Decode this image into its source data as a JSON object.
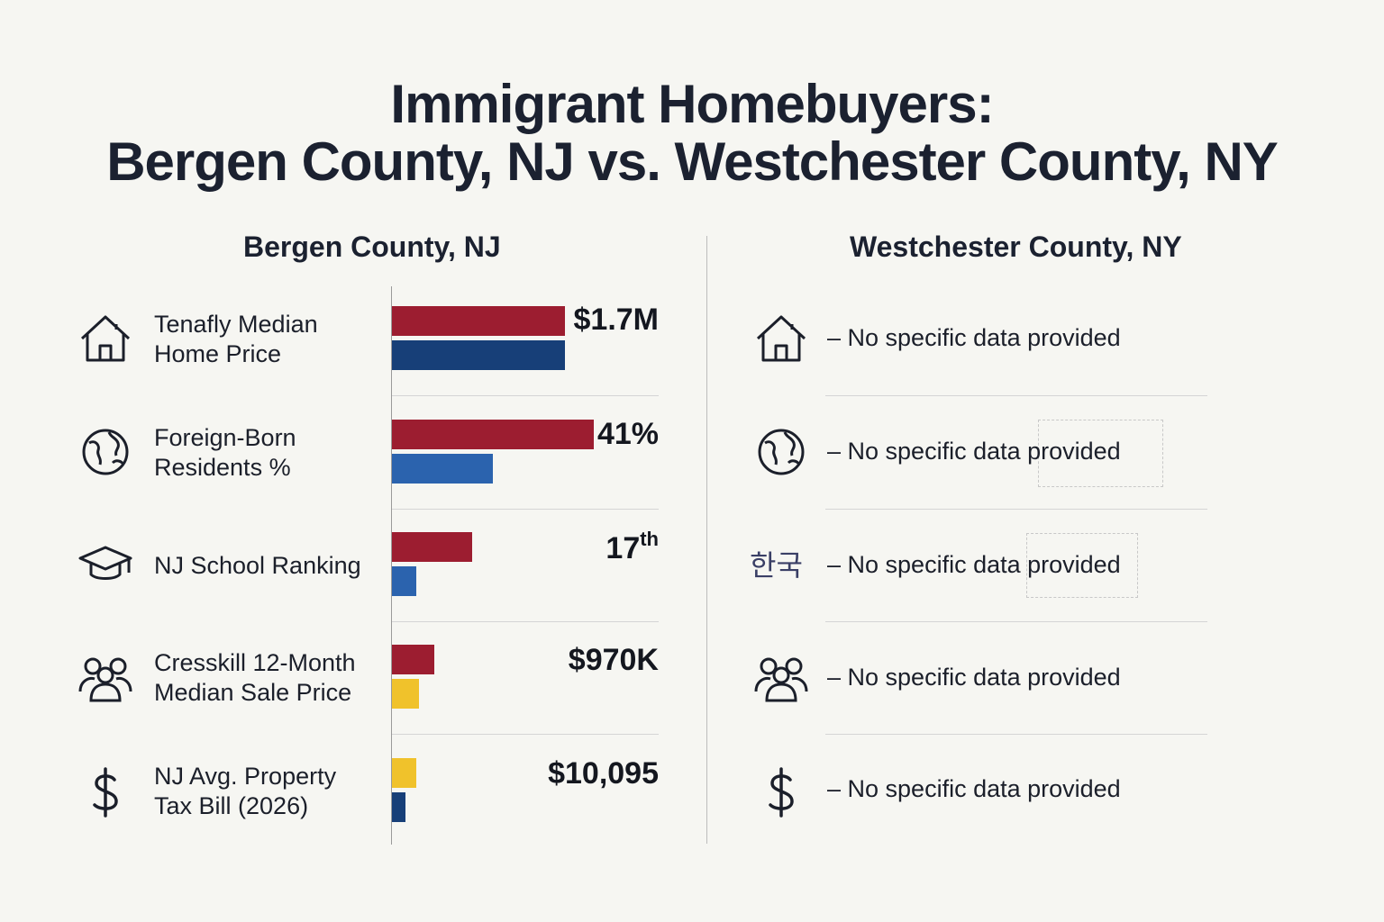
{
  "title": {
    "line1": "Immigrant Homebuyers:",
    "line2": "Bergen County, NJ vs. Westchester County, NY"
  },
  "columns": {
    "left": "Bergen County, NJ",
    "right": "Westchester County, NY"
  },
  "rows": [
    {
      "icon": "house-icon",
      "label_line1": "Tenafly Median",
      "label_line2": "Home Price",
      "value": "$1.7M",
      "value_suffix": "",
      "right_text": "– No specific data provided"
    },
    {
      "icon": "globe-icon",
      "label_line1": "Foreign-Born",
      "label_line2": "Residents %",
      "value": "41%",
      "value_suffix": "",
      "right_text": "– No specific data provided"
    },
    {
      "icon": "graduation-cap-icon",
      "label_line1": "NJ School Ranking",
      "label_line2": "",
      "value": "17",
      "value_suffix": "th",
      "right_text": "– No specific data provided",
      "right_icon_text": "한국"
    },
    {
      "icon": "people-group-icon",
      "label_line1": "Cresskill 12-Month",
      "label_line2": "Median Sale Price",
      "value": "$970K",
      "value_suffix": "",
      "right_text": "– No specific data provided"
    },
    {
      "icon": "dollar-sign-icon",
      "label_line1": "NJ Avg. Property",
      "label_line2": "Tax Bill (2026)",
      "value": "$10,095",
      "value_suffix": "",
      "right_text": "– No specific data provided"
    }
  ],
  "chart_data": {
    "type": "bar",
    "categories": [
      "Tenafly Median Home Price",
      "Foreign-Born Residents %",
      "NJ School Ranking",
      "Cresskill 12-Month Median Sale Price",
      "NJ Avg. Property Tax Bill (2026)"
    ],
    "bar_fractions": [
      {
        "top": 0.65,
        "bottom": 0.65,
        "top_color": "#9c1d30",
        "bottom_color": "#173f78"
      },
      {
        "top": 0.76,
        "bottom": 0.38,
        "top_color": "#9c1d30",
        "bottom_color": "#2b63ae"
      },
      {
        "top": 0.3,
        "bottom": 0.09,
        "top_color": "#9c1d30",
        "bottom_color": "#2b63ae"
      },
      {
        "top": 0.16,
        "bottom": 0.1,
        "top_color": "#9c1d30",
        "bottom_color": "#f0c22b"
      },
      {
        "top": 0.09,
        "bottom": 0.05,
        "top_color": "#f0c22b",
        "bottom_color": "#173f78"
      }
    ],
    "data_labels": [
      "$1.7M",
      "41%",
      "17th",
      "$970K",
      "$10,095"
    ]
  }
}
